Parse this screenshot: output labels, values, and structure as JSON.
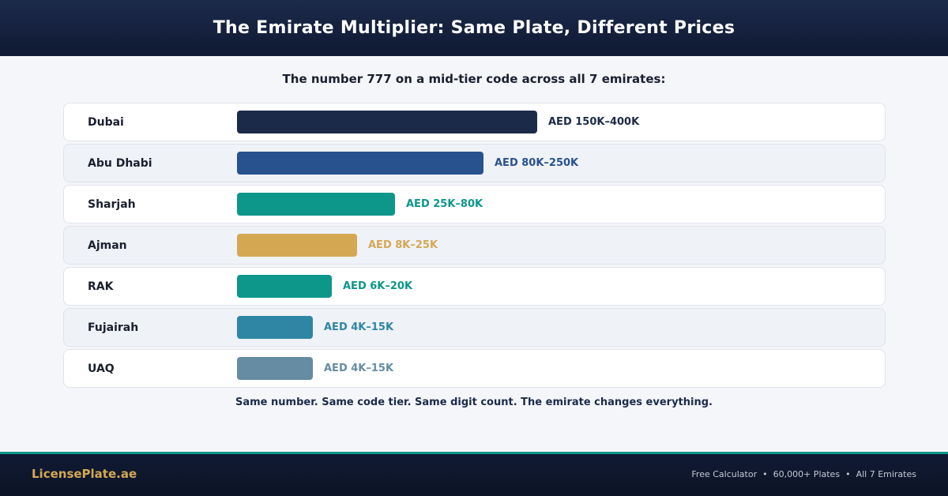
{
  "header": {
    "title": "The Emirate Multiplier: Same Plate, Different Prices"
  },
  "chart_data": {
    "type": "bar",
    "orientation": "horizontal",
    "title": "The number 777 on a mid-tier code across all 7 emirates:",
    "categories": [
      "Dubai",
      "Abu Dhabi",
      "Sharjah",
      "Ajman",
      "RAK",
      "Fujairah",
      "UAQ"
    ],
    "value_labels": [
      "AED 150K–400K",
      "AED 80K–250K",
      "AED 25K–80K",
      "AED 8K–25K",
      "AED 6K–20K",
      "AED 4K–15K",
      "AED 4K–15K"
    ],
    "bar_fill_percent": [
      95,
      78,
      50,
      38,
      30,
      24,
      24
    ],
    "colors": [
      "#1c2a4a",
      "#28528e",
      "#0d968a",
      "#d4a853",
      "#0d968a",
      "#2e86a4",
      "#658ca3"
    ],
    "grid": false
  },
  "note": "Same number. Same code tier. Same digit count. The emirate changes everything.",
  "footer": {
    "brand": "LicensePlate.ae",
    "links": [
      "Free Calculator",
      "60,000+ Plates",
      "All 7 Emirates"
    ],
    "separator": "•"
  },
  "colors": {
    "accent": "#0d968a",
    "gold": "#d4a853",
    "navy": "#1c2a4a"
  }
}
